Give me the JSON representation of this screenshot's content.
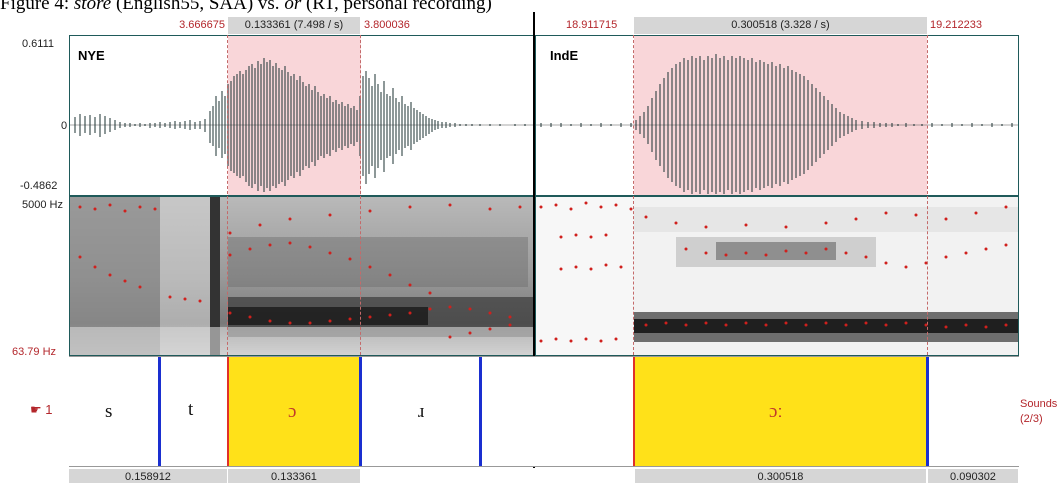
{
  "caption": {
    "prefix": "Figure 4: ",
    "word": "store",
    "mid": " (English55, SAA) vs. ",
    "word2": "or",
    "suffix": " (RT, personal recording)"
  },
  "left": {
    "label": "NYE",
    "sel_start": "3.666675",
    "sel_dur": "0.133361 (7.498 / s)",
    "sel_end": "3.800036",
    "amp_max": "0.6111",
    "amp_zero": "0",
    "amp_min": "-0.4862",
    "freq_max": "5000 Hz",
    "freq_min": "63.79 Hz",
    "segments": [
      "s",
      "t",
      "ɔ",
      "ɹ"
    ],
    "durations": [
      "0.158912",
      "0.133361"
    ]
  },
  "right": {
    "label": "IndE",
    "sel_start": "18.911715",
    "sel_dur": "0.300518 (3.328 / s)",
    "sel_end": "19.212233",
    "segments": [
      "ɔː"
    ],
    "durations": [
      "0.300518",
      "0.090302"
    ]
  },
  "tier": {
    "number": "1",
    "name": "Sounds",
    "count": "(2/3)"
  },
  "colors": {
    "selection_pink": "#f9d6d9",
    "interval_yellow": "#ffe119",
    "boundary_blue": "#1a2fd0",
    "text_red": "#b3262b"
  }
}
